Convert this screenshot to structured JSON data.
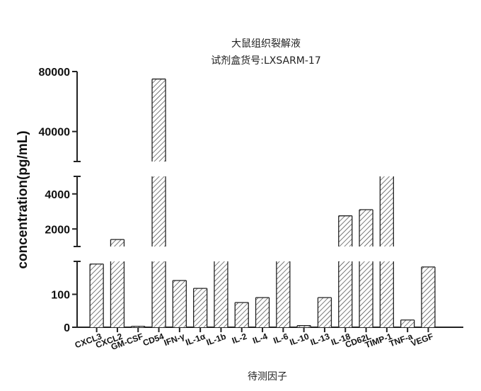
{
  "chart_data": {
    "type": "bar",
    "title": "大鼠组织裂解液",
    "subtitle": "试剂盒货号:LXSARM-17",
    "ylabel": "concentration(pg/mL)",
    "xlabel": "待测因子",
    "y_axis_segments": [
      {
        "range": [
          0,
          200
        ],
        "ticks": [
          0,
          100
        ]
      },
      {
        "range": [
          1000,
          5000
        ],
        "ticks": [
          2000,
          4000
        ]
      },
      {
        "range": [
          20000,
          80000
        ],
        "ticks": [
          40000,
          80000
        ]
      }
    ],
    "categories": [
      "CXCL3",
      "CXCL2",
      "GM-CSF",
      "CD54",
      "IFN-γ",
      "IL-1α",
      "IL-1b",
      "IL-2",
      "IL-4",
      "IL-6",
      "IL-10",
      "IL-13",
      "IL-18",
      "CD62L",
      "TIMP-1",
      "TNF-a",
      "VEGF"
    ],
    "values": [
      192,
      1400,
      3,
      75000,
      142,
      118,
      600,
      75,
      90,
      210,
      5,
      90,
      2750,
      3100,
      10000,
      22,
      183
    ],
    "bar_pattern": "diagonal-hatch",
    "bar_color": "#333333",
    "grid": false,
    "legend": "none"
  }
}
